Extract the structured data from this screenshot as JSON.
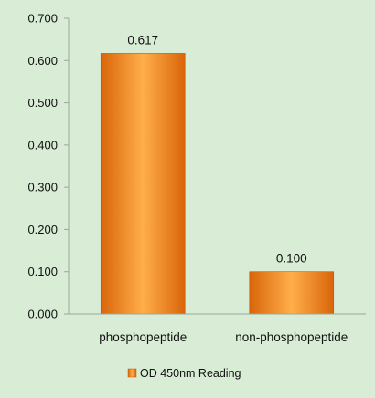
{
  "chart_data": {
    "type": "bar",
    "categories": [
      "phosphopeptide",
      "non-phosphopeptide"
    ],
    "series": [
      {
        "name": "OD 450nm Reading",
        "values": [
          0.617,
          0.1
        ]
      }
    ],
    "data_labels": [
      "0.617",
      "0.100"
    ],
    "y_ticks": [
      "0.000",
      "0.100",
      "0.200",
      "0.300",
      "0.400",
      "0.500",
      "0.600",
      "0.700"
    ],
    "ylim": [
      0,
      0.7
    ],
    "title": "",
    "xlabel": "",
    "ylabel": "",
    "grid": false,
    "legend": "bottom-center",
    "colors": {
      "bar_light": "#ffb347",
      "bar_mid": "#f28a1c",
      "bar_dark": "#d9650a",
      "background": "#d8ecd6",
      "axis": "#9aa99a"
    }
  }
}
